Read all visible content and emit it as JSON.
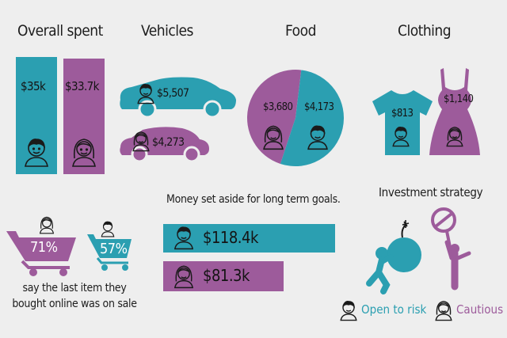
{
  "colors": {
    "teal": "#2b9fb1",
    "purple": "#9d5b9b",
    "ink": "#1a1a1a",
    "background": "#eeeeee"
  },
  "titles": {
    "overall": "Overall spent",
    "vehicles": "Vehicles",
    "food": "Food",
    "clothing": "Clothing",
    "savings": "Money set aside for long term goals.",
    "investment": "Investment strategy"
  },
  "sale_note": {
    "line1": "say the last item they",
    "line2": "bought online was on sale"
  },
  "legend": {
    "open": "Open to risk",
    "cautious": "Cautious"
  },
  "icons": {
    "man": "man-avatar-icon",
    "woman": "woman-avatar-icon",
    "cart": "shopping-cart-icon",
    "car": "car-icon",
    "tshirt": "tshirt-icon",
    "dress": "dress-icon",
    "bomb": "bomb-icon",
    "sign": "no-entry-sign-icon"
  },
  "chart_data": [
    {
      "type": "bar",
      "title": "Overall spent",
      "categories": [
        "Open to risk",
        "Cautious"
      ],
      "values": [
        35000,
        33700
      ],
      "labels": [
        "$35k",
        "$33.7k"
      ],
      "colors": [
        "#2b9fb1",
        "#9d5b9b"
      ]
    },
    {
      "type": "bar",
      "title": "Vehicles",
      "categories": [
        "Open to risk",
        "Cautious"
      ],
      "values": [
        5507,
        4273
      ],
      "labels": [
        "$5,507",
        "$4,273"
      ],
      "colors": [
        "#2b9fb1",
        "#9d5b9b"
      ]
    },
    {
      "type": "pie",
      "title": "Food",
      "categories": [
        "Cautious",
        "Open to risk"
      ],
      "values": [
        3680,
        4173
      ],
      "labels": [
        "$3,680",
        "$4,173"
      ],
      "colors": [
        "#9d5b9b",
        "#2b9fb1"
      ]
    },
    {
      "type": "bar",
      "title": "Clothing",
      "categories": [
        "Open to risk",
        "Cautious"
      ],
      "values": [
        813,
        1140
      ],
      "labels": [
        "$813",
        "$1,140"
      ],
      "colors": [
        "#2b9fb1",
        "#9d5b9b"
      ]
    },
    {
      "type": "bar",
      "title": "",
      "categories": [
        "Cautious",
        "Open to risk"
      ],
      "values": [
        71,
        57
      ],
      "unit": "%",
      "labels": [
        "71%",
        "57%"
      ],
      "colors": [
        "#9d5b9b",
        "#2b9fb1"
      ]
    },
    {
      "type": "bar",
      "title": "Money set aside for long term goals.",
      "orientation": "horizontal",
      "categories": [
        "Open to risk",
        "Cautious"
      ],
      "values": [
        118400,
        81300
      ],
      "labels": [
        "$118.4k",
        "$81.3k"
      ],
      "colors": [
        "#2b9fb1",
        "#9d5b9b"
      ]
    }
  ]
}
